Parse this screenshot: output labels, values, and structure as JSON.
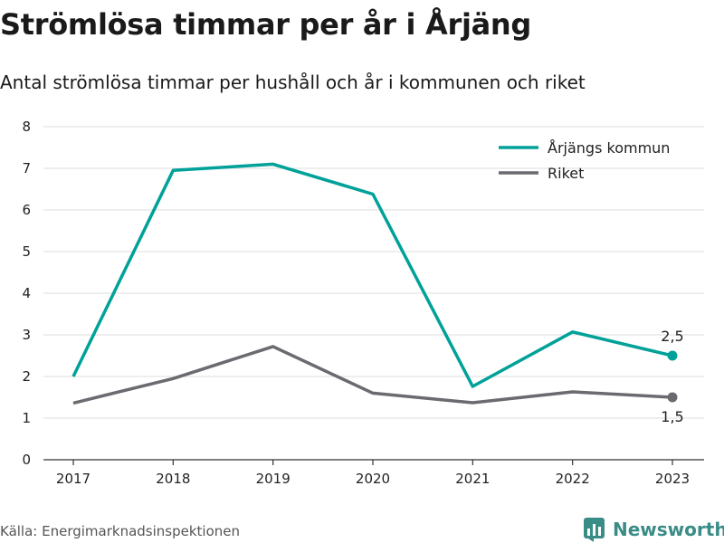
{
  "header": {
    "title": "Strömlösa timmar per år i Årjäng",
    "subtitle": "Antal strömlösa timmar per hushåll och år i kommunen och riket"
  },
  "footer": {
    "source": "Källa: Energimarknadsinspektionen",
    "brand": "Newsworthy",
    "brand_icon": "bar-chart-logo-icon",
    "brand_color": "#3a8c86"
  },
  "chart_data": {
    "type": "line",
    "title": "Strömlösa timmar per år i Årjäng",
    "subtitle": "Antal strömlösa timmar per hushåll och år i kommunen och riket",
    "x": [
      2017,
      2018,
      2019,
      2020,
      2021,
      2022,
      2023
    ],
    "x_tick_labels": [
      "2017",
      "2018",
      "2019",
      "2020",
      "2021",
      "2022",
      "2023"
    ],
    "y_ticks": [
      0,
      1,
      2,
      3,
      4,
      5,
      6,
      7,
      8
    ],
    "y_tick_labels": [
      "0",
      "1",
      "2",
      "3",
      "4",
      "5",
      "6",
      "7",
      "8"
    ],
    "ylim": [
      0,
      8
    ],
    "xlabel": "",
    "ylabel": "",
    "grid": true,
    "legend_position": "top-right",
    "series": [
      {
        "name": "Årjängs kommun",
        "color": "#00a199",
        "values": [
          2.0,
          6.95,
          7.1,
          6.38,
          1.76,
          3.07,
          2.5
        ],
        "end_label": "2,5",
        "end_label_position": "above"
      },
      {
        "name": "Riket",
        "color": "#6b6a70",
        "values": [
          1.36,
          1.95,
          2.72,
          1.6,
          1.37,
          1.63,
          1.5
        ],
        "end_label": "1,5",
        "end_label_position": "below"
      }
    ]
  }
}
